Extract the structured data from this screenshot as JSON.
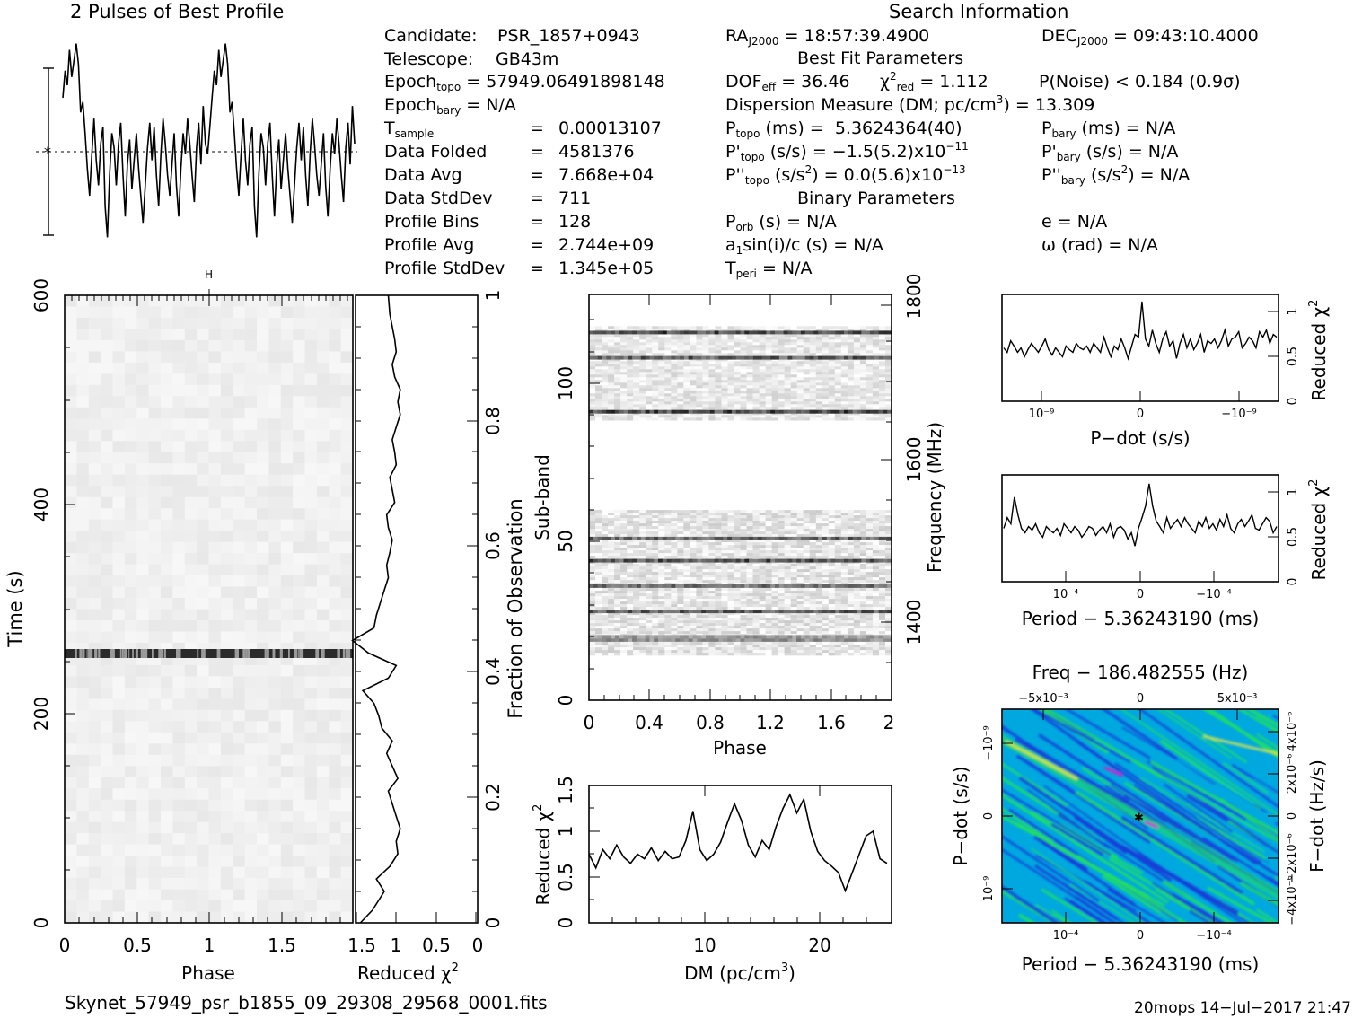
{
  "header": {
    "profile_title": "2 Pulses of Best Profile",
    "search_title": "Search Information",
    "best_fit_title": "Best Fit Parameters",
    "binary_title": "Binary Parameters"
  },
  "info": {
    "candidate_label": "Candidate:",
    "candidate": "PSR_1857+0943",
    "telescope_label": "Telescope:",
    "telescope": "GB43m",
    "epoch_topo_label": "Epoch",
    "epoch_topo_sub": "topo",
    "epoch_topo": "= 57949.06491898148",
    "epoch_bary_label": "Epoch",
    "epoch_bary_sub": "bary",
    "epoch_bary": "= N/A",
    "t_sample_label": "T",
    "t_sample_sub": "sample",
    "eq": "=",
    "t_sample": "0.00013107",
    "data_folded_label": "Data Folded",
    "data_folded": "4581376",
    "data_avg_label": "Data Avg",
    "data_avg": "7.668e+04",
    "data_std_label": "Data StdDev",
    "data_std": "711",
    "profile_bins_label": "Profile Bins",
    "profile_bins": "128",
    "profile_avg_label": "Profile Avg",
    "profile_avg": "2.744e+09",
    "profile_std_label": "Profile StdDev",
    "profile_std": "1.345e+05"
  },
  "search": {
    "ra_label": "RA",
    "ra_sub": "J2000",
    "ra": "= 18:57:39.4900",
    "dec_label": "DEC",
    "dec_sub": "J2000",
    "dec": "= 09:43:10.4000",
    "dof_label": "DOF",
    "dof_sub": "eff",
    "dof": "= 36.46",
    "chi_label": "χ",
    "chi_sup": "2",
    "chi_sub": "red",
    "chi": "= 1.112",
    "pnoise": "P(Noise) < 0.184   (0.9σ)",
    "dm_text": "Dispersion Measure (DM; pc/cm",
    "dm_sup": "3",
    "dm_value": ") = 13.309",
    "p_label": "P",
    "p_sub": "topo",
    "p_unit": "(ms) =",
    "p_value": "5.3624364(40)",
    "pd_label": "P'",
    "pd_sub": "topo",
    "pd_unit": "(s/s) =",
    "pd_value": "−1.5(5.2)x10",
    "pd_exp": "−11",
    "pdd_label": "P''",
    "pdd_sub": "topo",
    "pdd_unit": "(s/s",
    "pdd_sup": "2",
    "pdd_value": ") = 0.0(5.6)x10",
    "pdd_exp": "−13",
    "pb_label": "P",
    "pb_sub": "bary",
    "pb_value": "(ms) = N/A",
    "pbd_label": "P'",
    "pbd_sub": "bary",
    "pbd_value": "(s/s) = N/A",
    "pbdd_label": "P''",
    "pbdd_sub": "bary",
    "pbdd_unit": "(s/s",
    "pbdd_sup": "2",
    "pbdd_value": ") = N/A",
    "porb_label": "P",
    "porb_sub": "orb",
    "porb_value": "(s) = N/A",
    "a1_label": "a",
    "a1_sub": "1",
    "a1_value": "sin(i)/c (s) = N/A",
    "tperi_label": "T",
    "tperi_sub": "peri",
    "tperi_value": "= N/A",
    "e_value": "e = N/A",
    "omega_value": "ω (rad) = N/A"
  },
  "footer": {
    "filename": "Skynet_57949_psr_b1855_09_29308_29568_0001.fits",
    "stamp": "20mops  14−Jul−2017 21:47"
  },
  "colors": {
    "line": "#000000",
    "grey_light": "#f0f0f0",
    "map_base": "#00a8e0",
    "map_dark": "#1638d8",
    "map_green": "#22e060",
    "map_yellow": "#e8e840",
    "map_magenta": "#d020d0"
  },
  "chart_data": [
    {
      "id": "profile",
      "type": "line",
      "title": "2 Pulses of Best Profile",
      "x_range": [
        0,
        2
      ],
      "y_range": [
        0,
        1
      ],
      "values": [
        0.72,
        0.85,
        0.78,
        0.95,
        0.82,
        0.9,
        0.98,
        0.88,
        0.65,
        0.7,
        0.55,
        0.38,
        0.25,
        0.45,
        0.62,
        0.42,
        0.3,
        0.5,
        0.58,
        0.2,
        0.05,
        0.35,
        0.55,
        0.48,
        0.3,
        0.5,
        0.6,
        0.35,
        0.15,
        0.4,
        0.52,
        0.28,
        0.42,
        0.55,
        0.38,
        0.25,
        0.12,
        0.3,
        0.48,
        0.6,
        0.42,
        0.58,
        0.35,
        0.2,
        0.45,
        0.62,
        0.5,
        0.35,
        0.25,
        0.4,
        0.55,
        0.3,
        0.15,
        0.38,
        0.55,
        0.45,
        0.62,
        0.5,
        0.35,
        0.22,
        0.48,
        0.6,
        0.4,
        0.68,
        0.5,
        0.45,
        0.58,
        0.72,
        0.85,
        0.78,
        0.95,
        0.82,
        0.9,
        0.98,
        0.88,
        0.65,
        0.7,
        0.55,
        0.38,
        0.25,
        0.45,
        0.62,
        0.42,
        0.3,
        0.5,
        0.58,
        0.2,
        0.05,
        0.35,
        0.55,
        0.48,
        0.3,
        0.5,
        0.6,
        0.35,
        0.15,
        0.4,
        0.52,
        0.28,
        0.42,
        0.55,
        0.38,
        0.25,
        0.12,
        0.3,
        0.48,
        0.6,
        0.42,
        0.58,
        0.35,
        0.2,
        0.45,
        0.62,
        0.5,
        0.35,
        0.25,
        0.4,
        0.55,
        0.3,
        0.15,
        0.38,
        0.55,
        0.45,
        0.62,
        0.5,
        0.35,
        0.22,
        0.48,
        0.6,
        0.4,
        0.68,
        0.5
      ]
    },
    {
      "id": "time-phase",
      "type": "heatmap",
      "xlabel": "Phase",
      "ylabel": "Time (s)",
      "x_range": [
        0,
        1.5
      ],
      "y_range": [
        0,
        600
      ],
      "x_ticks": [
        "0",
        "0.5",
        "1",
        "1.5"
      ],
      "y_ticks": [
        "0",
        "200",
        "400",
        "600"
      ],
      "dark_band_time": 257
    },
    {
      "id": "time-chi",
      "type": "line",
      "xlabel": "Reduced χ²",
      "ylabel": "Fraction of Observation",
      "x_range": [
        1.5,
        0
      ],
      "y_range": [
        0,
        1
      ],
      "x_ticks": [
        "1.5",
        "1",
        "0.5",
        "0"
      ],
      "y_ticks": [
        "0",
        "0.2",
        "0.4",
        "0.6",
        "0.8",
        "1"
      ],
      "fraction": [
        0.0,
        0.02,
        0.04,
        0.05,
        0.07,
        0.09,
        0.11,
        0.13,
        0.15,
        0.17,
        0.19,
        0.21,
        0.23,
        0.25,
        0.27,
        0.29,
        0.31,
        0.33,
        0.35,
        0.37,
        0.39,
        0.41,
        0.43,
        0.45,
        0.47,
        0.49,
        0.51,
        0.53,
        0.55,
        0.57,
        0.59,
        0.61,
        0.63,
        0.65,
        0.67,
        0.69,
        0.71,
        0.73,
        0.75,
        0.77,
        0.79,
        0.81,
        0.83,
        0.85,
        0.87,
        0.89,
        0.91,
        0.93,
        0.95,
        0.97,
        1.0
      ],
      "reduced_chi2": [
        1.45,
        1.3,
        1.2,
        1.15,
        1.25,
        1.08,
        0.98,
        1.0,
        0.95,
        1.0,
        1.05,
        1.1,
        0.98,
        1.05,
        1.12,
        1.05,
        1.18,
        1.22,
        1.28,
        1.42,
        1.1,
        1.0,
        1.35,
        1.55,
        1.28,
        1.25,
        1.2,
        1.15,
        1.1,
        1.12,
        1.08,
        1.05,
        1.1,
        1.12,
        1.02,
        1.05,
        1.08,
        1.0,
        1.02,
        1.05,
        1.0,
        0.95,
        0.98,
        0.95,
        1.02,
        1.05,
        1.0,
        1.02,
        1.05,
        1.08,
        1.1
      ]
    },
    {
      "id": "subband-phase",
      "type": "heatmap",
      "xlabel": "Phase",
      "ylabel": "Sub-band",
      "y2label": "Frequency (MHz)",
      "x_range": [
        0,
        2
      ],
      "y_range": [
        0,
        128
      ],
      "x_ticks": [
        "0",
        "0.4",
        "0.8",
        "1.2",
        "1.6",
        "2"
      ],
      "y_ticks": [
        "0",
        "50",
        "100"
      ],
      "y2_ticks": [
        "1400",
        "1600",
        "1800"
      ],
      "bands": [
        {
          "from": 14,
          "to": 60,
          "level": 0.25
        },
        {
          "from": 88,
          "to": 118,
          "level": 0.22
        }
      ],
      "lines": [
        {
          "subband": 19,
          "level": 0.55
        },
        {
          "subband": 20,
          "level": 0.5
        },
        {
          "subband": 28,
          "level": 0.8
        },
        {
          "subband": 36,
          "level": 0.7
        },
        {
          "subband": 44,
          "level": 0.85
        },
        {
          "subband": 51,
          "level": 0.75
        },
        {
          "subband": 91,
          "level": 0.9
        },
        {
          "subband": 108,
          "level": 0.8
        },
        {
          "subband": 116,
          "level": 0.9
        }
      ]
    },
    {
      "id": "dm-chi",
      "type": "line",
      "xlabel": "DM (pc/cm³)",
      "ylabel": "Reduced χ²",
      "x_range": [
        0.2,
        26.4
      ],
      "y_range": [
        0,
        1.5
      ],
      "x_ticks": [
        "10",
        "20"
      ],
      "y_ticks": [
        "0",
        "0.5",
        "1",
        "1.5"
      ],
      "dm": [
        0.2,
        0.8,
        1.4,
        2.0,
        2.6,
        3.2,
        3.8,
        4.4,
        5.0,
        5.6,
        6.2,
        6.8,
        7.4,
        8.0,
        8.6,
        9.2,
        9.8,
        10.4,
        11.0,
        11.6,
        12.2,
        12.8,
        13.4,
        14.0,
        14.6,
        15.2,
        15.8,
        16.4,
        17.0,
        17.6,
        18.2,
        18.8,
        19.4,
        20.0,
        20.6,
        21.2,
        21.8,
        22.4,
        23.0,
        23.6,
        24.2,
        24.8,
        25.4,
        26.0
      ],
      "reduced_chi2": [
        0.75,
        0.6,
        0.8,
        0.7,
        0.85,
        0.72,
        0.65,
        0.75,
        0.7,
        0.82,
        0.68,
        0.78,
        0.7,
        0.72,
        0.9,
        1.22,
        0.8,
        0.68,
        0.75,
        0.88,
        1.1,
        1.3,
        1.12,
        0.85,
        0.72,
        0.9,
        0.8,
        1.05,
        1.25,
        1.4,
        1.2,
        1.35,
        1.0,
        0.78,
        0.68,
        0.62,
        0.55,
        0.35,
        0.55,
        0.75,
        0.95,
        1.0,
        0.7,
        0.65
      ]
    },
    {
      "id": "pdot-chi",
      "type": "line",
      "xlabel": "P−dot (s/s)",
      "ylabel": "Reduced χ²",
      "y_range": [
        0,
        1.2
      ],
      "x_ticks": [
        "10⁻⁹",
        "0",
        "−10⁻⁹"
      ],
      "y_ticks": [
        "0",
        "0.5",
        "1"
      ],
      "reduced_chi2": [
        0.6,
        0.55,
        0.68,
        0.62,
        0.55,
        0.6,
        0.5,
        0.58,
        0.65,
        0.6,
        0.55,
        0.62,
        0.7,
        0.58,
        0.52,
        0.6,
        0.55,
        0.5,
        0.62,
        0.58,
        0.55,
        0.65,
        0.6,
        0.58,
        0.62,
        0.55,
        0.65,
        0.6,
        0.55,
        0.72,
        0.6,
        0.5,
        0.62,
        0.58,
        0.7,
        0.6,
        0.48,
        0.62,
        0.75,
        0.72,
        1.12,
        0.7,
        0.62,
        0.8,
        0.65,
        0.55,
        0.7,
        0.78,
        0.62,
        0.68,
        0.48,
        0.65,
        0.75,
        0.6,
        0.7,
        0.58,
        0.65,
        0.75,
        0.55,
        0.68,
        0.65,
        0.7,
        0.6,
        0.68,
        0.8,
        0.62,
        0.7,
        0.72,
        0.78,
        0.6,
        0.65,
        0.72,
        0.68,
        0.6,
        0.78,
        0.72,
        0.8,
        0.65,
        0.75,
        0.72
      ]
    },
    {
      "id": "period-chi",
      "type": "line",
      "xlabel": "Period − 5.36243190 (ms)",
      "ylabel": "Reduced χ²",
      "y_range": [
        0,
        1.2
      ],
      "x_ticks": [
        "10⁻⁴",
        "0",
        "−10⁻⁴"
      ],
      "y_ticks": [
        "0",
        "0.5",
        "1"
      ],
      "reduced_chi2": [
        0.6,
        0.72,
        0.65,
        0.95,
        0.75,
        0.6,
        0.55,
        0.62,
        0.58,
        0.65,
        0.55,
        0.5,
        0.62,
        0.58,
        0.55,
        0.6,
        0.52,
        0.65,
        0.6,
        0.55,
        0.62,
        0.58,
        0.5,
        0.55,
        0.62,
        0.6,
        0.52,
        0.58,
        0.62,
        0.55,
        0.65,
        0.5,
        0.6,
        0.62,
        0.58,
        0.48,
        0.55,
        0.4,
        0.6,
        0.72,
        0.85,
        1.1,
        0.85,
        0.68,
        0.62,
        0.55,
        0.72,
        0.6,
        0.65,
        0.7,
        0.62,
        0.72,
        0.65,
        0.6,
        0.55,
        0.68,
        0.62,
        0.72,
        0.6,
        0.65,
        0.58,
        0.7,
        0.62,
        0.75,
        0.6,
        0.55,
        0.65,
        0.7,
        0.62,
        0.68,
        0.75,
        0.6,
        0.58,
        0.65,
        0.72,
        0.68,
        0.55,
        0.62
      ]
    },
    {
      "id": "pdot-period",
      "type": "heatmap",
      "title": "Freq − 186.482555 (Hz)",
      "xlabel": "Period − 5.36243190 (ms)",
      "ylabel": "P−dot (s/s)",
      "y2label": "F−dot (Hz/s)",
      "x_ticks": [
        "10⁻⁴",
        "0",
        "−10⁻⁴"
      ],
      "x2_ticks": [
        "−5x10⁻³",
        "0",
        "5x10⁻³"
      ],
      "y_ticks": [
        "−10⁻⁹",
        "0",
        "10⁻⁹"
      ],
      "y2_ticks": [
        "4x10⁻⁶",
        "2x10⁻⁶",
        "0",
        "−2x10⁻⁶",
        "−4x10⁻⁶"
      ]
    }
  ]
}
